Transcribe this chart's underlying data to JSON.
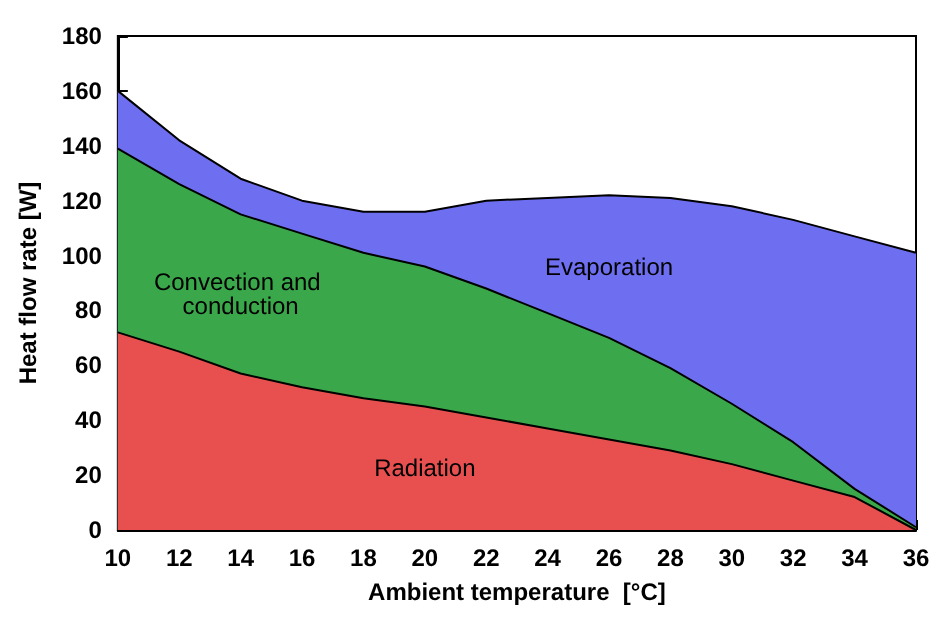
{
  "chart_data": {
    "type": "area",
    "stacked": true,
    "xlabel": "Ambient temperature  [°C]",
    "ylabel": "Heat flow rate [W]",
    "x": [
      10,
      12,
      14,
      16,
      18,
      20,
      22,
      24,
      26,
      28,
      30,
      32,
      34,
      36
    ],
    "series": [
      {
        "name": "Radiation",
        "color": "#e85050",
        "values": [
          72,
          65,
          57,
          52,
          48,
          45,
          41,
          37,
          33,
          29,
          24,
          18,
          12,
          0
        ]
      },
      {
        "name": "Convection and conduction",
        "color": "#3aa84a",
        "values": [
          67,
          61,
          58,
          56,
          53,
          51,
          47,
          42,
          37,
          30,
          22,
          14,
          3,
          1
        ]
      },
      {
        "name": "Evaporation",
        "color": "#6e6ef0",
        "values": [
          21,
          16,
          13,
          12,
          15,
          20,
          32,
          42,
          52,
          62,
          72,
          81,
          92,
          100
        ]
      }
    ],
    "xlim": [
      10,
      36
    ],
    "xticks": [
      10,
      12,
      14,
      16,
      18,
      20,
      22,
      24,
      26,
      28,
      30,
      32,
      34,
      36
    ],
    "ylim": [
      0,
      180
    ],
    "yticks": [
      0,
      20,
      40,
      60,
      80,
      100,
      120,
      140,
      160,
      180
    ],
    "grid": false,
    "legend": false
  }
}
